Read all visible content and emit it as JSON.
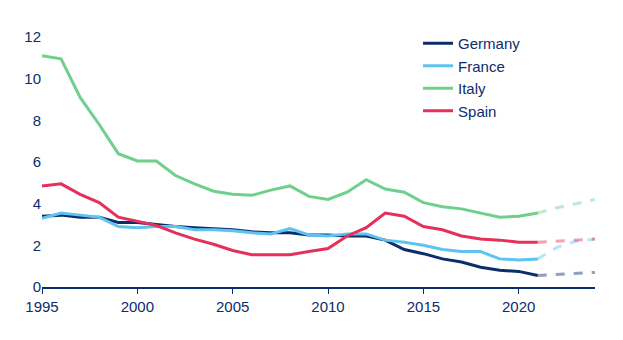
{
  "chart_data": {
    "type": "line",
    "x": [
      1995,
      1996,
      1997,
      1998,
      1999,
      2000,
      2001,
      2002,
      2003,
      2004,
      2005,
      2006,
      2007,
      2008,
      2009,
      2010,
      2011,
      2012,
      2013,
      2014,
      2015,
      2016,
      2017,
      2018,
      2019,
      2020,
      2021
    ],
    "series": [
      {
        "name": "Germany",
        "color": "#0b2d6b",
        "line_style": "solid",
        "values": [
          3.4,
          3.45,
          3.35,
          3.35,
          3.1,
          3.1,
          3.0,
          2.9,
          2.85,
          2.8,
          2.75,
          2.65,
          2.6,
          2.6,
          2.5,
          2.5,
          2.45,
          2.45,
          2.25,
          1.8,
          1.6,
          1.35,
          1.2,
          0.95,
          0.8,
          0.75,
          0.55
        ]
      },
      {
        "name": "France",
        "color": "#5ec4ef",
        "line_style": "solid",
        "values": [
          3.3,
          3.55,
          3.45,
          3.35,
          2.9,
          2.85,
          2.9,
          2.9,
          2.75,
          2.75,
          2.7,
          2.6,
          2.55,
          2.8,
          2.5,
          2.45,
          2.55,
          2.55,
          2.25,
          2.15,
          2.0,
          1.8,
          1.7,
          1.7,
          1.35,
          1.3,
          1.35
        ]
      },
      {
        "name": "Italy",
        "color": "#6fd08c",
        "line_style": "solid",
        "values": [
          11.1,
          10.95,
          9.1,
          7.8,
          6.4,
          6.05,
          6.05,
          5.35,
          4.95,
          4.6,
          4.45,
          4.4,
          4.65,
          4.85,
          4.35,
          4.2,
          4.55,
          5.15,
          4.7,
          4.55,
          4.05,
          3.85,
          3.75,
          3.55,
          3.35,
          3.4,
          3.55
        ]
      },
      {
        "name": "Spain",
        "color": "#e5305a",
        "line_style": "solid",
        "values": [
          4.85,
          4.95,
          4.45,
          4.05,
          3.35,
          3.15,
          2.95,
          2.6,
          2.3,
          2.05,
          1.75,
          1.55,
          1.55,
          1.55,
          1.7,
          1.85,
          2.45,
          2.85,
          3.55,
          3.4,
          2.9,
          2.75,
          2.45,
          2.3,
          2.25,
          2.15,
          2.15
        ]
      },
      {
        "name": "Germany",
        "color": "#0b2d6b",
        "line_style": "dashed",
        "x": [
          2021,
          2022,
          2023,
          2024
        ],
        "values": [
          0.55,
          0.6,
          0.65,
          0.7
        ]
      },
      {
        "name": "France",
        "color": "#5ec4ef",
        "line_style": "dashed",
        "x": [
          2021,
          2022,
          2023,
          2024
        ],
        "values": [
          1.35,
          1.9,
          2.2,
          2.3
        ]
      },
      {
        "name": "Italy",
        "color": "#6fd08c",
        "line_style": "dashed",
        "x": [
          2021,
          2022,
          2023,
          2024
        ],
        "values": [
          3.55,
          3.8,
          4.0,
          4.2
        ]
      },
      {
        "name": "Spain",
        "color": "#e5305a",
        "line_style": "dashed",
        "x": [
          2021,
          2022,
          2023,
          2024
        ],
        "values": [
          2.15,
          2.2,
          2.25,
          2.3
        ]
      }
    ],
    "xlim": [
      1995,
      2024
    ],
    "xticks": [
      1995,
      2000,
      2005,
      2010,
      2015,
      2020
    ],
    "ylim": [
      0,
      12
    ],
    "yticks": [
      0,
      2,
      4,
      6,
      8,
      10,
      12
    ],
    "grid": false,
    "legend": "upper right"
  }
}
